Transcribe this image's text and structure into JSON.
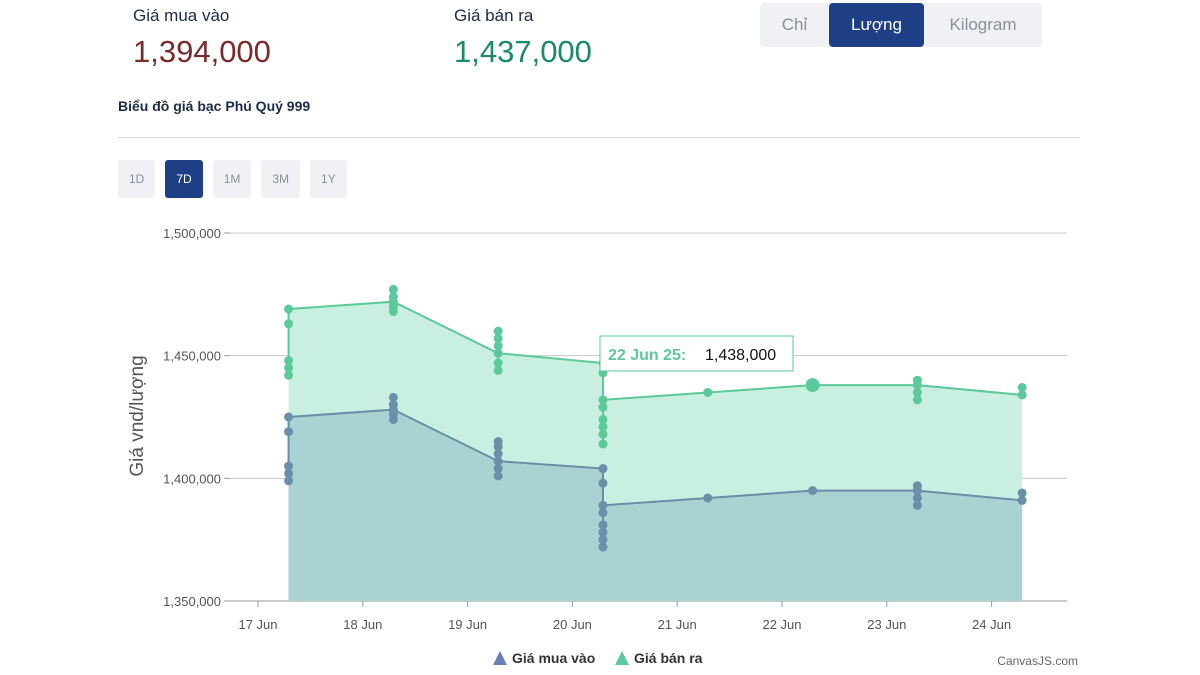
{
  "header": {
    "buy_label": "Giá mua vào",
    "buy_value": "1,394,000",
    "sell_label": "Giá bán ra",
    "sell_value": "1,437,000"
  },
  "unit_switch": {
    "options": [
      "Chỉ",
      "Lượng",
      "Kilogram"
    ],
    "selected": "Lượng"
  },
  "chart_title": "Biểu đồ giá bạc Phú Quý 999",
  "range_buttons": {
    "options": [
      "1D",
      "7D",
      "1M",
      "3M",
      "1Y"
    ],
    "selected": "7D"
  },
  "tooltip": {
    "date": "22 Jun 25:",
    "value": "1,438,000"
  },
  "credit": "CanvasJS.com",
  "colors": {
    "buy_line": "#6a8fa8",
    "buy_fill": "#a9d2d2",
    "sell_line": "#5cc99a",
    "sell_fill": "#c9efe1",
    "active": "#1e3f86"
  },
  "chart_data": {
    "type": "area",
    "ylabel": "Giá vnd/lượng",
    "ylim": [
      1350000,
      1500000
    ],
    "yticks": [
      1350000,
      1400000,
      1450000,
      1500000
    ],
    "ytick_labels": [
      "1,350,000",
      "1,400,000",
      "1,450,000",
      "1,500,000"
    ],
    "xlim": [
      "2025-06-17",
      "2025-06-24"
    ],
    "xtick_labels": [
      "17 Jun",
      "18 Jun",
      "19 Jun",
      "20 Jun",
      "21 Jun",
      "22 Jun",
      "23 Jun",
      "24 Jun"
    ],
    "legend_position": "bottom",
    "grid": true,
    "series": [
      {
        "name": "Giá mua vào",
        "color": "#6a8fa8",
        "line": [
          [
            "2025-06-17 07:00",
            1425000
          ],
          [
            "2025-06-18 07:00",
            1428000
          ],
          [
            "2025-06-19 07:00",
            1407000
          ],
          [
            "2025-06-20 07:00",
            1404000
          ],
          [
            "2025-06-20 07:00",
            1389000
          ],
          [
            "2025-06-21 07:00",
            1392000
          ],
          [
            "2025-06-22 07:00",
            1395000
          ],
          [
            "2025-06-23 07:00",
            1395000
          ],
          [
            "2025-06-24 07:00",
            1391000
          ]
        ],
        "points": [
          [
            "2025-06-17 07:00",
            1425000
          ],
          [
            "2025-06-17 07:00",
            1419000
          ],
          [
            "2025-06-17 07:00",
            1405000
          ],
          [
            "2025-06-17 07:00",
            1402000
          ],
          [
            "2025-06-17 07:00",
            1399000
          ],
          [
            "2025-06-18 07:00",
            1433000
          ],
          [
            "2025-06-18 07:00",
            1430000
          ],
          [
            "2025-06-18 07:00",
            1428000
          ],
          [
            "2025-06-18 07:00",
            1426000
          ],
          [
            "2025-06-18 07:00",
            1424000
          ],
          [
            "2025-06-19 07:00",
            1415000
          ],
          [
            "2025-06-19 07:00",
            1413000
          ],
          [
            "2025-06-19 07:00",
            1410000
          ],
          [
            "2025-06-19 07:00",
            1407000
          ],
          [
            "2025-06-19 07:00",
            1404000
          ],
          [
            "2025-06-19 07:00",
            1401000
          ],
          [
            "2025-06-20 07:00",
            1404000
          ],
          [
            "2025-06-20 07:00",
            1398000
          ],
          [
            "2025-06-20 07:00",
            1389000
          ],
          [
            "2025-06-20 07:00",
            1386000
          ],
          [
            "2025-06-20 07:00",
            1381000
          ],
          [
            "2025-06-20 07:00",
            1378000
          ],
          [
            "2025-06-20 07:00",
            1375000
          ],
          [
            "2025-06-20 07:00",
            1372000
          ],
          [
            "2025-06-21 07:00",
            1392000
          ],
          [
            "2025-06-22 07:00",
            1395000
          ],
          [
            "2025-06-23 07:00",
            1397000
          ],
          [
            "2025-06-23 07:00",
            1395000
          ],
          [
            "2025-06-23 07:00",
            1392000
          ],
          [
            "2025-06-23 07:00",
            1389000
          ],
          [
            "2025-06-24 07:00",
            1394000
          ],
          [
            "2025-06-24 07:00",
            1391000
          ]
        ]
      },
      {
        "name": "Giá bán ra",
        "color": "#5cc99a",
        "line": [
          [
            "2025-06-17 07:00",
            1469000
          ],
          [
            "2025-06-18 07:00",
            1472000
          ],
          [
            "2025-06-19 07:00",
            1451000
          ],
          [
            "2025-06-20 07:00",
            1447000
          ],
          [
            "2025-06-20 07:00",
            1432000
          ],
          [
            "2025-06-21 07:00",
            1435000
          ],
          [
            "2025-06-22 07:00",
            1438000
          ],
          [
            "2025-06-23 07:00",
            1438000
          ],
          [
            "2025-06-24 07:00",
            1434000
          ]
        ],
        "points": [
          [
            "2025-06-17 07:00",
            1469000
          ],
          [
            "2025-06-17 07:00",
            1463000
          ],
          [
            "2025-06-17 07:00",
            1448000
          ],
          [
            "2025-06-17 07:00",
            1445000
          ],
          [
            "2025-06-17 07:00",
            1442000
          ],
          [
            "2025-06-18 07:00",
            1477000
          ],
          [
            "2025-06-18 07:00",
            1474000
          ],
          [
            "2025-06-18 07:00",
            1472000
          ],
          [
            "2025-06-18 07:00",
            1470000
          ],
          [
            "2025-06-18 07:00",
            1468000
          ],
          [
            "2025-06-19 07:00",
            1460000
          ],
          [
            "2025-06-19 07:00",
            1457000
          ],
          [
            "2025-06-19 07:00",
            1454000
          ],
          [
            "2025-06-19 07:00",
            1451000
          ],
          [
            "2025-06-19 07:00",
            1447000
          ],
          [
            "2025-06-19 07:00",
            1444000
          ],
          [
            "2025-06-20 07:00",
            1447000
          ],
          [
            "2025-06-20 07:00",
            1443000
          ],
          [
            "2025-06-20 07:00",
            1432000
          ],
          [
            "2025-06-20 07:00",
            1429000
          ],
          [
            "2025-06-20 07:00",
            1424000
          ],
          [
            "2025-06-20 07:00",
            1421000
          ],
          [
            "2025-06-20 07:00",
            1418000
          ],
          [
            "2025-06-20 07:00",
            1414000
          ],
          [
            "2025-06-21 07:00",
            1435000
          ],
          [
            "2025-06-22 07:00",
            1438000
          ],
          [
            "2025-06-23 07:00",
            1440000
          ],
          [
            "2025-06-23 07:00",
            1438000
          ],
          [
            "2025-06-23 07:00",
            1435000
          ],
          [
            "2025-06-23 07:00",
            1432000
          ],
          [
            "2025-06-24 07:00",
            1437000
          ],
          [
            "2025-06-24 07:00",
            1434000
          ]
        ]
      }
    ]
  }
}
